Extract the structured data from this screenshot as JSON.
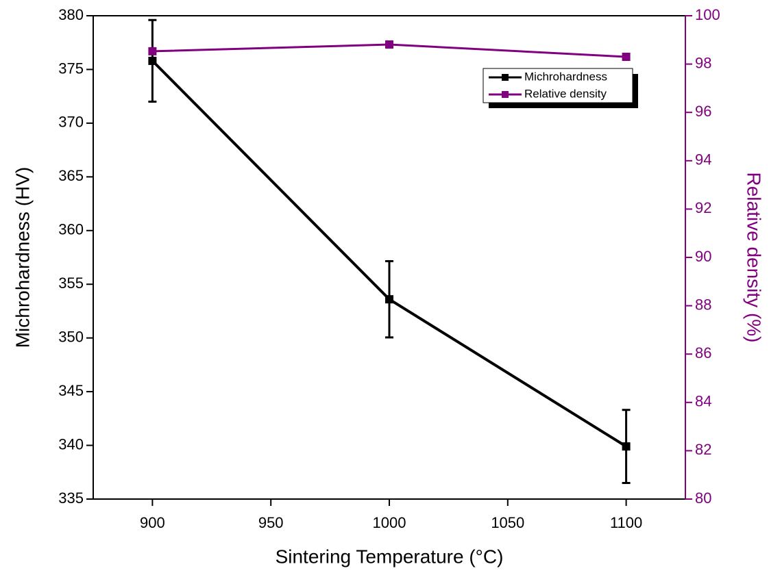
{
  "chart_data": {
    "type": "line",
    "xlabel": "Sintering Temperature (°C)",
    "ylabel": "Michrohardness (HV)",
    "y2label": "Relative density (%)",
    "x": [
      900,
      1000,
      1100
    ],
    "series": [
      {
        "name": "Michrohardness",
        "color": "#000000",
        "values": [
          375.8,
          353.6,
          339.9
        ],
        "errors": [
          3.8,
          3.55,
          3.4
        ]
      },
      {
        "name": "Relative density",
        "color": "#800080",
        "axis": "y2",
        "values": [
          98.53,
          98.81,
          98.3
        ]
      }
    ],
    "xlim": [
      875,
      1125
    ],
    "xticks": [
      900,
      950,
      1000,
      1050,
      1100
    ],
    "ylim": [
      335,
      380
    ],
    "yticks": [
      335,
      340,
      345,
      350,
      355,
      360,
      365,
      370,
      375,
      380
    ],
    "y2lim": [
      80,
      100
    ],
    "y2ticks": [
      80,
      82,
      84,
      86,
      88,
      90,
      92,
      94,
      96,
      98,
      100
    ],
    "y2color": "#800080",
    "legend": "top-right"
  }
}
